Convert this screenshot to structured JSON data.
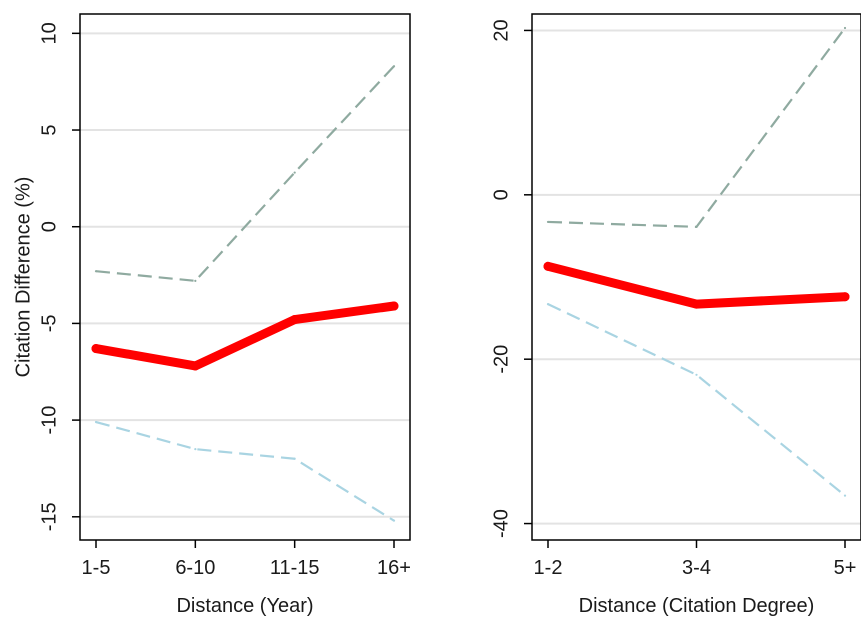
{
  "chart_data": [
    {
      "type": "line",
      "xlabel": "Distance (Year)",
      "ylabel": "Citation Difference (%)",
      "categories": [
        "1-5",
        "6-10",
        "11-15",
        "16+"
      ],
      "yticks": [
        10,
        5,
        0,
        -5,
        -10,
        -15
      ],
      "ylim": [
        -16.2,
        11
      ],
      "grid": true,
      "series": [
        {
          "role": "estimate",
          "values": [
            -6.3,
            -7.2,
            -4.8,
            -4.1
          ],
          "color": "#ff0000",
          "style": "solid-thick"
        },
        {
          "role": "upper",
          "values": [
            -2.3,
            -2.8,
            2.8,
            8.3
          ],
          "color": "#8faaa0",
          "style": "dashed"
        },
        {
          "role": "lower",
          "values": [
            -10.1,
            -11.5,
            -12.0,
            -15.2
          ],
          "color": "#a9d4e2",
          "style": "dashed"
        }
      ]
    },
    {
      "type": "line",
      "xlabel": "Distance (Citation Degree)",
      "ylabel": "",
      "categories": [
        "1-2",
        "3-4",
        "5+"
      ],
      "yticks": [
        20,
        0,
        -20,
        -40
      ],
      "ylim": [
        -42,
        22
      ],
      "grid": true,
      "series": [
        {
          "role": "estimate",
          "values": [
            -8.7,
            -13.3,
            -12.4
          ],
          "color": "#ff0000",
          "style": "solid-thick"
        },
        {
          "role": "upper",
          "values": [
            -3.3,
            -3.9,
            20.3
          ],
          "color": "#8faaa0",
          "style": "dashed"
        },
        {
          "role": "lower",
          "values": [
            -13.3,
            -21.9,
            -36.6
          ],
          "color": "#a9d4e2",
          "style": "dashed"
        }
      ]
    }
  ]
}
